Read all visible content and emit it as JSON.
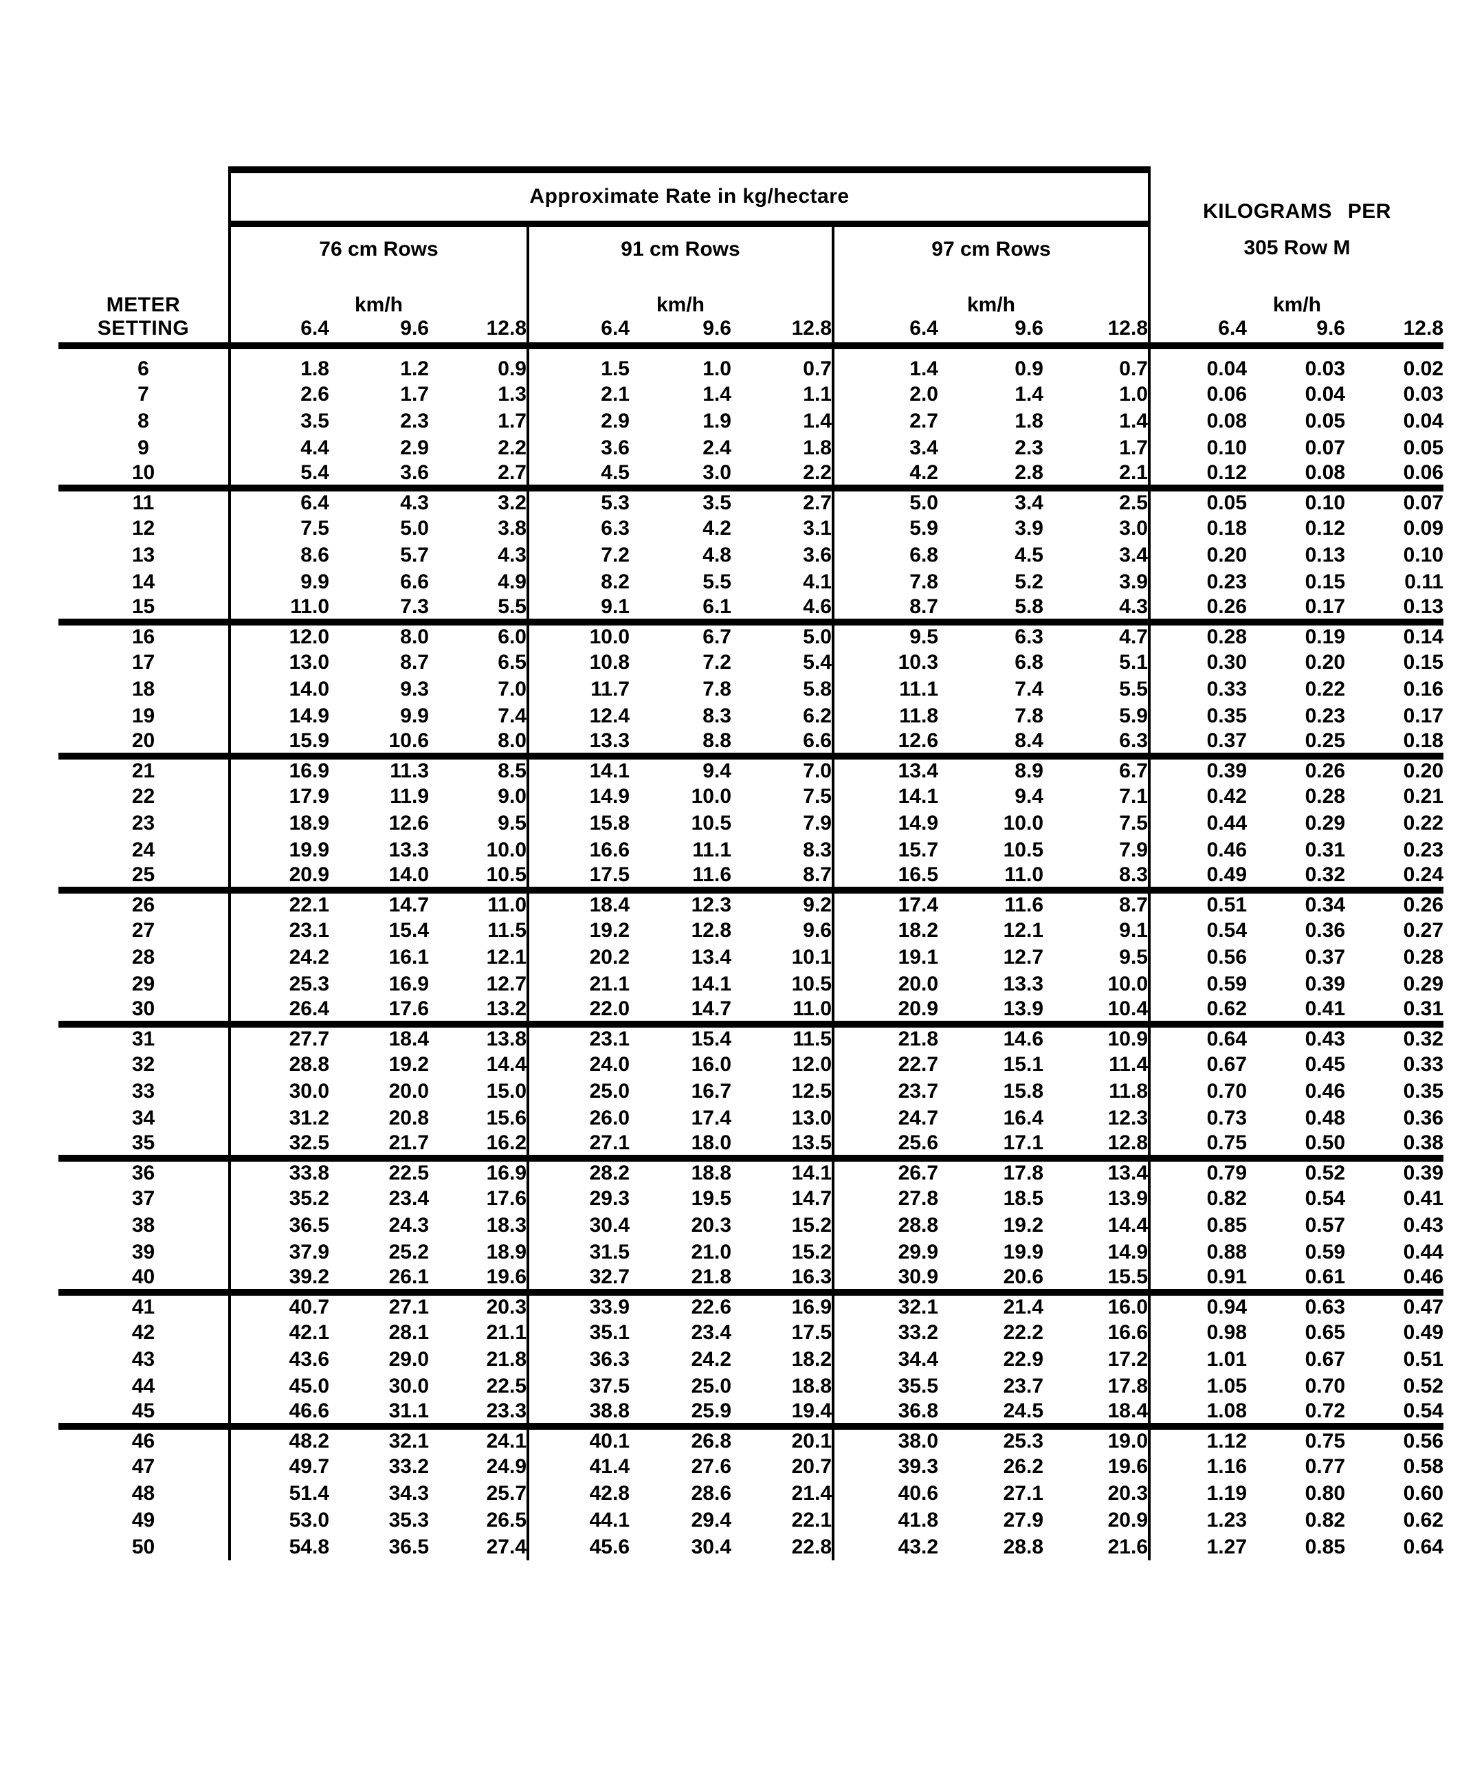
{
  "table": {
    "title": "Approximate Rate in kg/hectare",
    "right_header": {
      "line1": "KILOGRAMS  PER",
      "line2": "305 Row M"
    },
    "row_label": {
      "line1": "METER",
      "line2": "SETTING"
    },
    "speed_unit": "km/h",
    "groups": [
      {
        "label": "76 cm Rows",
        "speeds": [
          "6.4",
          "9.6",
          "12.8"
        ]
      },
      {
        "label": "91 cm Rows",
        "speeds": [
          "6.4",
          "9.6",
          "12.8"
        ]
      },
      {
        "label": "97 cm Rows",
        "speeds": [
          "6.4",
          "9.6",
          "12.8"
        ]
      },
      {
        "label": "305 Row M",
        "speeds": [
          "6.4",
          "9.6",
          "12.8"
        ]
      }
    ],
    "thick_rule_after_settings": [
      "10",
      "15",
      "20",
      "25",
      "30",
      "35",
      "40",
      "45"
    ],
    "rows": [
      {
        "setting": "6",
        "values": [
          "1.8",
          "1.2",
          "0.9",
          "1.5",
          "1.0",
          "0.7",
          "1.4",
          "0.9",
          "0.7",
          "0.04",
          "0.03",
          "0.02"
        ]
      },
      {
        "setting": "7",
        "values": [
          "2.6",
          "1.7",
          "1.3",
          "2.1",
          "1.4",
          "1.1",
          "2.0",
          "1.4",
          "1.0",
          "0.06",
          "0.04",
          "0.03"
        ]
      },
      {
        "setting": "8",
        "values": [
          "3.5",
          "2.3",
          "1.7",
          "2.9",
          "1.9",
          "1.4",
          "2.7",
          "1.8",
          "1.4",
          "0.08",
          "0.05",
          "0.04"
        ]
      },
      {
        "setting": "9",
        "values": [
          "4.4",
          "2.9",
          "2.2",
          "3.6",
          "2.4",
          "1.8",
          "3.4",
          "2.3",
          "1.7",
          "0.10",
          "0.07",
          "0.05"
        ]
      },
      {
        "setting": "10",
        "values": [
          "5.4",
          "3.6",
          "2.7",
          "4.5",
          "3.0",
          "2.2",
          "4.2",
          "2.8",
          "2.1",
          "0.12",
          "0.08",
          "0.06"
        ]
      },
      {
        "setting": "11",
        "values": [
          "6.4",
          "4.3",
          "3.2",
          "5.3",
          "3.5",
          "2.7",
          "5.0",
          "3.4",
          "2.5",
          "0.05",
          "0.10",
          "0.07"
        ]
      },
      {
        "setting": "12",
        "values": [
          "7.5",
          "5.0",
          "3.8",
          "6.3",
          "4.2",
          "3.1",
          "5.9",
          "3.9",
          "3.0",
          "0.18",
          "0.12",
          "0.09"
        ]
      },
      {
        "setting": "13",
        "values": [
          "8.6",
          "5.7",
          "4.3",
          "7.2",
          "4.8",
          "3.6",
          "6.8",
          "4.5",
          "3.4",
          "0.20",
          "0.13",
          "0.10"
        ]
      },
      {
        "setting": "14",
        "values": [
          "9.9",
          "6.6",
          "4.9",
          "8.2",
          "5.5",
          "4.1",
          "7.8",
          "5.2",
          "3.9",
          "0.23",
          "0.15",
          "0.11"
        ]
      },
      {
        "setting": "15",
        "values": [
          "11.0",
          "7.3",
          "5.5",
          "9.1",
          "6.1",
          "4.6",
          "8.7",
          "5.8",
          "4.3",
          "0.26",
          "0.17",
          "0.13"
        ]
      },
      {
        "setting": "16",
        "values": [
          "12.0",
          "8.0",
          "6.0",
          "10.0",
          "6.7",
          "5.0",
          "9.5",
          "6.3",
          "4.7",
          "0.28",
          "0.19",
          "0.14"
        ]
      },
      {
        "setting": "17",
        "values": [
          "13.0",
          "8.7",
          "6.5",
          "10.8",
          "7.2",
          "5.4",
          "10.3",
          "6.8",
          "5.1",
          "0.30",
          "0.20",
          "0.15"
        ]
      },
      {
        "setting": "18",
        "values": [
          "14.0",
          "9.3",
          "7.0",
          "11.7",
          "7.8",
          "5.8",
          "11.1",
          "7.4",
          "5.5",
          "0.33",
          "0.22",
          "0.16"
        ]
      },
      {
        "setting": "19",
        "values": [
          "14.9",
          "9.9",
          "7.4",
          "12.4",
          "8.3",
          "6.2",
          "11.8",
          "7.8",
          "5.9",
          "0.35",
          "0.23",
          "0.17"
        ]
      },
      {
        "setting": "20",
        "values": [
          "15.9",
          "10.6",
          "8.0",
          "13.3",
          "8.8",
          "6.6",
          "12.6",
          "8.4",
          "6.3",
          "0.37",
          "0.25",
          "0.18"
        ]
      },
      {
        "setting": "21",
        "values": [
          "16.9",
          "11.3",
          "8.5",
          "14.1",
          "9.4",
          "7.0",
          "13.4",
          "8.9",
          "6.7",
          "0.39",
          "0.26",
          "0.20"
        ]
      },
      {
        "setting": "22",
        "values": [
          "17.9",
          "11.9",
          "9.0",
          "14.9",
          "10.0",
          "7.5",
          "14.1",
          "9.4",
          "7.1",
          "0.42",
          "0.28",
          "0.21"
        ]
      },
      {
        "setting": "23",
        "values": [
          "18.9",
          "12.6",
          "9.5",
          "15.8",
          "10.5",
          "7.9",
          "14.9",
          "10.0",
          "7.5",
          "0.44",
          "0.29",
          "0.22"
        ]
      },
      {
        "setting": "24",
        "values": [
          "19.9",
          "13.3",
          "10.0",
          "16.6",
          "11.1",
          "8.3",
          "15.7",
          "10.5",
          "7.9",
          "0.46",
          "0.31",
          "0.23"
        ]
      },
      {
        "setting": "25",
        "values": [
          "20.9",
          "14.0",
          "10.5",
          "17.5",
          "11.6",
          "8.7",
          "16.5",
          "11.0",
          "8.3",
          "0.49",
          "0.32",
          "0.24"
        ]
      },
      {
        "setting": "26",
        "values": [
          "22.1",
          "14.7",
          "11.0",
          "18.4",
          "12.3",
          "9.2",
          "17.4",
          "11.6",
          "8.7",
          "0.51",
          "0.34",
          "0.26"
        ]
      },
      {
        "setting": "27",
        "values": [
          "23.1",
          "15.4",
          "11.5",
          "19.2",
          "12.8",
          "9.6",
          "18.2",
          "12.1",
          "9.1",
          "0.54",
          "0.36",
          "0.27"
        ]
      },
      {
        "setting": "28",
        "values": [
          "24.2",
          "16.1",
          "12.1",
          "20.2",
          "13.4",
          "10.1",
          "19.1",
          "12.7",
          "9.5",
          "0.56",
          "0.37",
          "0.28"
        ]
      },
      {
        "setting": "29",
        "values": [
          "25.3",
          "16.9",
          "12.7",
          "21.1",
          "14.1",
          "10.5",
          "20.0",
          "13.3",
          "10.0",
          "0.59",
          "0.39",
          "0.29"
        ]
      },
      {
        "setting": "30",
        "values": [
          "26.4",
          "17.6",
          "13.2",
          "22.0",
          "14.7",
          "11.0",
          "20.9",
          "13.9",
          "10.4",
          "0.62",
          "0.41",
          "0.31"
        ]
      },
      {
        "setting": "31",
        "values": [
          "27.7",
          "18.4",
          "13.8",
          "23.1",
          "15.4",
          "11.5",
          "21.8",
          "14.6",
          "10.9",
          "0.64",
          "0.43",
          "0.32"
        ]
      },
      {
        "setting": "32",
        "values": [
          "28.8",
          "19.2",
          "14.4",
          "24.0",
          "16.0",
          "12.0",
          "22.7",
          "15.1",
          "11.4",
          "0.67",
          "0.45",
          "0.33"
        ]
      },
      {
        "setting": "33",
        "values": [
          "30.0",
          "20.0",
          "15.0",
          "25.0",
          "16.7",
          "12.5",
          "23.7",
          "15.8",
          "11.8",
          "0.70",
          "0.46",
          "0.35"
        ]
      },
      {
        "setting": "34",
        "values": [
          "31.2",
          "20.8",
          "15.6",
          "26.0",
          "17.4",
          "13.0",
          "24.7",
          "16.4",
          "12.3",
          "0.73",
          "0.48",
          "0.36"
        ]
      },
      {
        "setting": "35",
        "values": [
          "32.5",
          "21.7",
          "16.2",
          "27.1",
          "18.0",
          "13.5",
          "25.6",
          "17.1",
          "12.8",
          "0.75",
          "0.50",
          "0.38"
        ]
      },
      {
        "setting": "36",
        "values": [
          "33.8",
          "22.5",
          "16.9",
          "28.2",
          "18.8",
          "14.1",
          "26.7",
          "17.8",
          "13.4",
          "0.79",
          "0.52",
          "0.39"
        ]
      },
      {
        "setting": "37",
        "values": [
          "35.2",
          "23.4",
          "17.6",
          "29.3",
          "19.5",
          "14.7",
          "27.8",
          "18.5",
          "13.9",
          "0.82",
          "0.54",
          "0.41"
        ]
      },
      {
        "setting": "38",
        "values": [
          "36.5",
          "24.3",
          "18.3",
          "30.4",
          "20.3",
          "15.2",
          "28.8",
          "19.2",
          "14.4",
          "0.85",
          "0.57",
          "0.43"
        ]
      },
      {
        "setting": "39",
        "values": [
          "37.9",
          "25.2",
          "18.9",
          "31.5",
          "21.0",
          "15.2",
          "29.9",
          "19.9",
          "14.9",
          "0.88",
          "0.59",
          "0.44"
        ]
      },
      {
        "setting": "40",
        "values": [
          "39.2",
          "26.1",
          "19.6",
          "32.7",
          "21.8",
          "16.3",
          "30.9",
          "20.6",
          "15.5",
          "0.91",
          "0.61",
          "0.46"
        ]
      },
      {
        "setting": "41",
        "values": [
          "40.7",
          "27.1",
          "20.3",
          "33.9",
          "22.6",
          "16.9",
          "32.1",
          "21.4",
          "16.0",
          "0.94",
          "0.63",
          "0.47"
        ]
      },
      {
        "setting": "42",
        "values": [
          "42.1",
          "28.1",
          "21.1",
          "35.1",
          "23.4",
          "17.5",
          "33.2",
          "22.2",
          "16.6",
          "0.98",
          "0.65",
          "0.49"
        ]
      },
      {
        "setting": "43",
        "values": [
          "43.6",
          "29.0",
          "21.8",
          "36.3",
          "24.2",
          "18.2",
          "34.4",
          "22.9",
          "17.2",
          "1.01",
          "0.67",
          "0.51"
        ]
      },
      {
        "setting": "44",
        "values": [
          "45.0",
          "30.0",
          "22.5",
          "37.5",
          "25.0",
          "18.8",
          "35.5",
          "23.7",
          "17.8",
          "1.05",
          "0.70",
          "0.52"
        ]
      },
      {
        "setting": "45",
        "values": [
          "46.6",
          "31.1",
          "23.3",
          "38.8",
          "25.9",
          "19.4",
          "36.8",
          "24.5",
          "18.4",
          "1.08",
          "0.72",
          "0.54"
        ]
      },
      {
        "setting": "46",
        "values": [
          "48.2",
          "32.1",
          "24.1",
          "40.1",
          "26.8",
          "20.1",
          "38.0",
          "25.3",
          "19.0",
          "1.12",
          "0.75",
          "0.56"
        ]
      },
      {
        "setting": "47",
        "values": [
          "49.7",
          "33.2",
          "24.9",
          "41.4",
          "27.6",
          "20.7",
          "39.3",
          "26.2",
          "19.6",
          "1.16",
          "0.77",
          "0.58"
        ]
      },
      {
        "setting": "48",
        "values": [
          "51.4",
          "34.3",
          "25.7",
          "42.8",
          "28.6",
          "21.4",
          "40.6",
          "27.1",
          "20.3",
          "1.19",
          "0.80",
          "0.60"
        ]
      },
      {
        "setting": "49",
        "values": [
          "53.0",
          "35.3",
          "26.5",
          "44.1",
          "29.4",
          "22.1",
          "41.8",
          "27.9",
          "20.9",
          "1.23",
          "0.82",
          "0.62"
        ]
      },
      {
        "setting": "50",
        "values": [
          "54.8",
          "36.5",
          "27.4",
          "45.6",
          "30.4",
          "22.8",
          "43.2",
          "28.8",
          "21.6",
          "1.27",
          "0.85",
          "0.64"
        ]
      }
    ]
  }
}
